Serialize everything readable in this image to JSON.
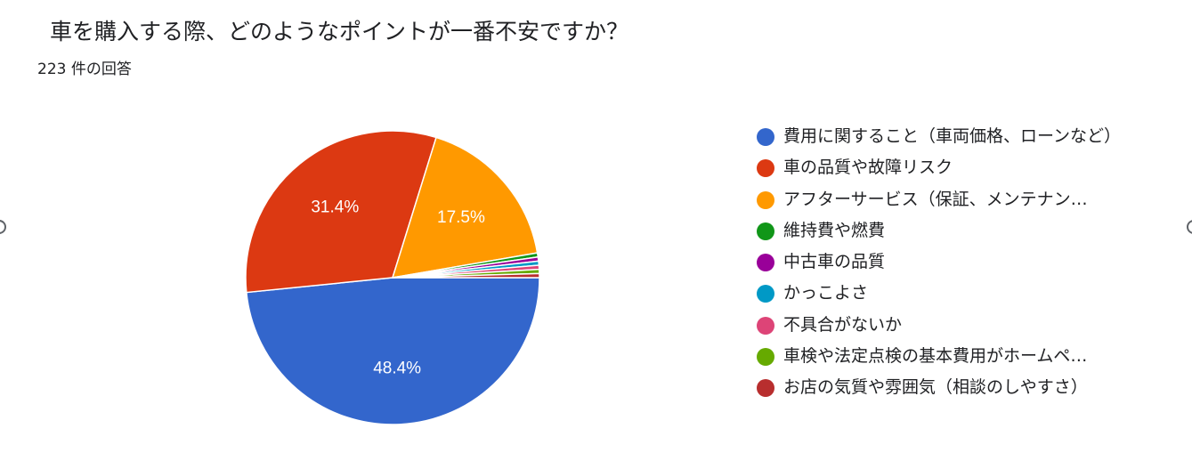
{
  "header": {
    "title": "車を購入する際、どのようなポイントが一番不安ですか？",
    "response_count": "223 件の回答"
  },
  "chart_data": {
    "type": "pie",
    "title": "車を購入する際、どのようなポイントが一番不安ですか？",
    "total_responses": 223,
    "legend_position": "right",
    "slices": [
      {
        "label": "費用に関すること（車両価格、ローンなど）",
        "legend_text": "費用に関すること（車両価格、ローンなど）",
        "percent": 48.4,
        "value_label": "48.4%",
        "color": "#3366cc"
      },
      {
        "label": "車の品質や故障リスク",
        "legend_text": "車の品質や故障リスク",
        "percent": 31.4,
        "value_label": "31.4%",
        "color": "#dc3912"
      },
      {
        "label": "アフターサービス（保証、メンテナンス）",
        "legend_text": "アフターサービス（保証、メンテナン…",
        "percent": 17.5,
        "value_label": "17.5%",
        "color": "#ff9900"
      },
      {
        "label": "維持費や燃費",
        "legend_text": "維持費や燃費",
        "percent": 0.45,
        "value_label": "",
        "color": "#109618"
      },
      {
        "label": "中古車の品質",
        "legend_text": "中古車の品質",
        "percent": 0.45,
        "value_label": "",
        "color": "#990099"
      },
      {
        "label": "かっこよさ",
        "legend_text": "かっこよさ",
        "percent": 0.45,
        "value_label": "",
        "color": "#0099c6"
      },
      {
        "label": "不具合がないか",
        "legend_text": "不具合がないか",
        "percent": 0.45,
        "value_label": "",
        "color": "#dd4477"
      },
      {
        "label": "車検や法定点検の基本費用がホームページ",
        "legend_text": "車検や法定点検の基本費用がホームペ…",
        "percent": 0.45,
        "value_label": "",
        "color": "#66aa00"
      },
      {
        "label": "お店の気質や雰囲気（相談のしやすさ）",
        "legend_text": "お店の気質や雰囲気（相談のしやすさ）",
        "percent": 0.45,
        "value_label": "",
        "color": "#b82e2e"
      }
    ]
  }
}
